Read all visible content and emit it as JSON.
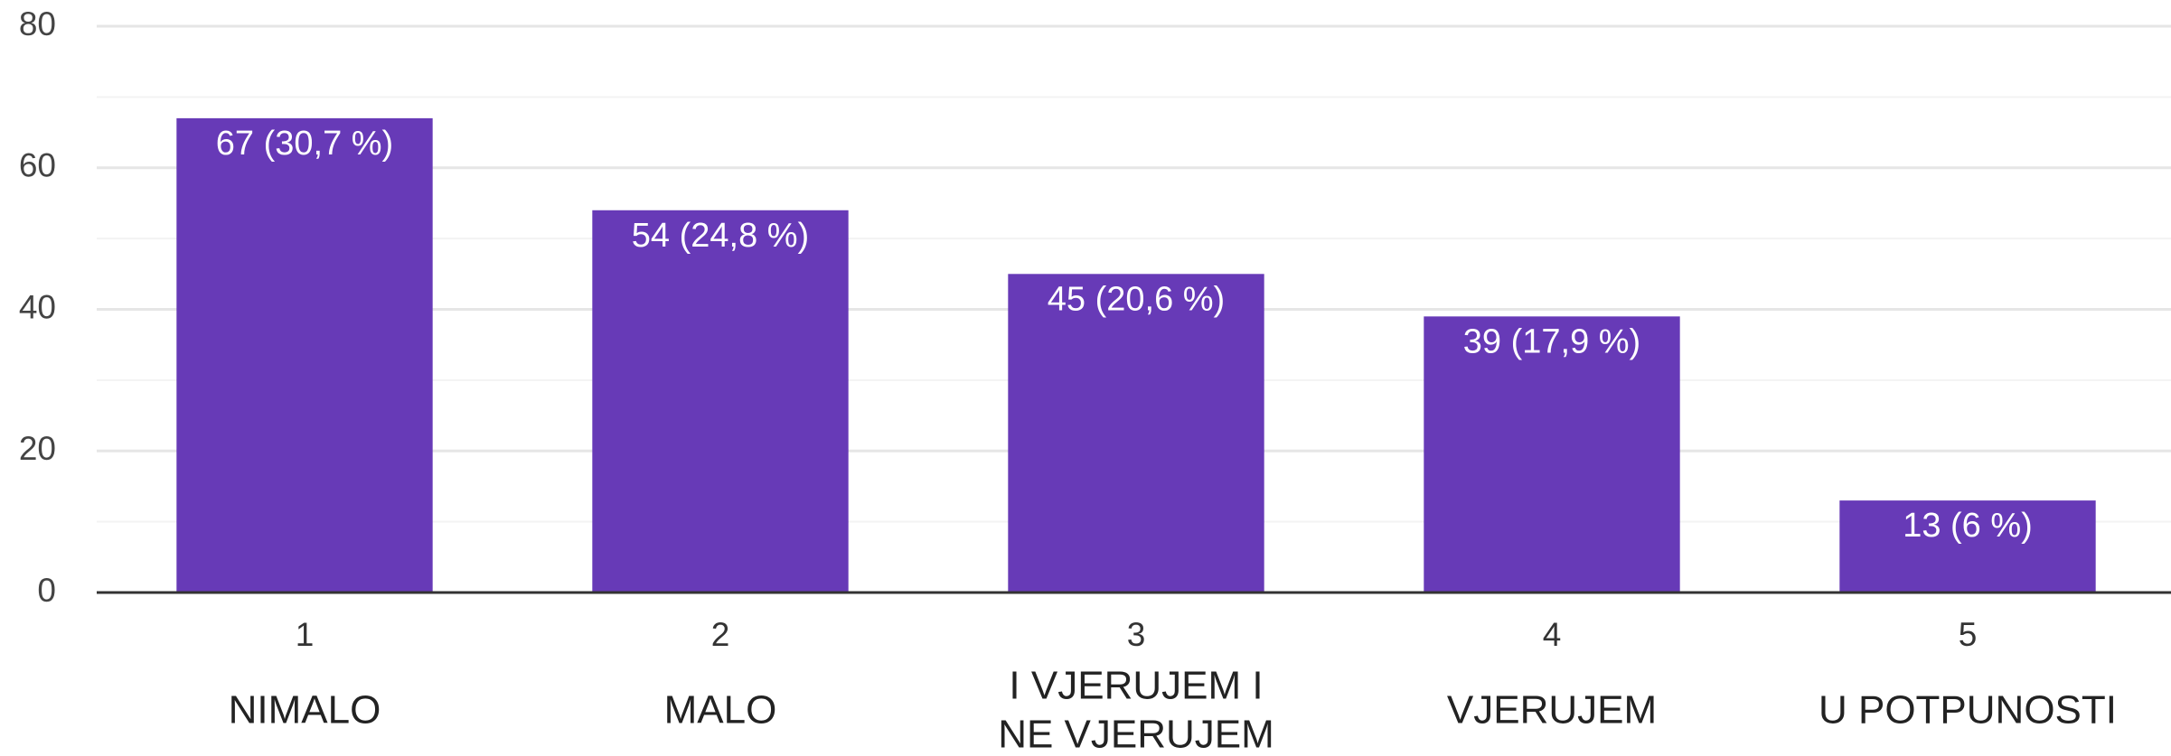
{
  "chart_data": {
    "type": "bar",
    "categories": [
      "1",
      "2",
      "3",
      "4",
      "5"
    ],
    "category_notes": [
      [
        "NIMALO"
      ],
      [
        "MALO"
      ],
      [
        "I VJERUJEM I",
        "NE VJERUJEM"
      ],
      [
        "VJERUJEM"
      ],
      [
        "U POTPUNOSTI"
      ]
    ],
    "values": [
      67,
      54,
      45,
      39,
      13
    ],
    "value_labels": [
      "67 (30,7 %)",
      "54 (24,8 %)",
      "45 (20,6 %)",
      "39 (17,9 %)",
      "13 (6 %)"
    ],
    "color": "#673ab7",
    "ylim": [
      0,
      80
    ],
    "yticks": [
      0,
      20,
      40,
      60,
      80
    ],
    "minor_yticks": [
      10,
      30,
      50,
      70
    ],
    "grid": true
  }
}
